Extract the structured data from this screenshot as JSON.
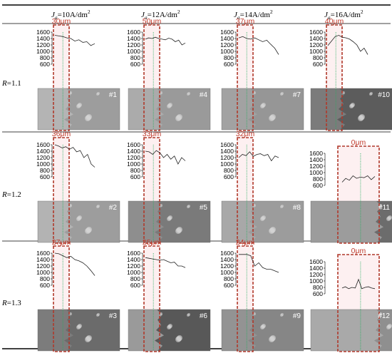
{
  "columns": [
    {
      "label_pre": "J",
      "label_sub": "a",
      "label_post": "=10A/dm",
      "label_sup": "2"
    },
    {
      "label_pre": "J",
      "label_sub": "a",
      "label_post": "=12A/dm",
      "label_sup": "2"
    },
    {
      "label_pre": "J",
      "label_sub": "a",
      "label_post": "=14A/dm",
      "label_sup": "2"
    },
    {
      "label_pre": "J",
      "label_sub": "a",
      "label_post": "=16A/dm",
      "label_sup": "2"
    }
  ],
  "rows": [
    {
      "label_var": "R",
      "label_val": "=1.1"
    },
    {
      "label_var": "R",
      "label_val": "=1.2"
    },
    {
      "label_var": "R",
      "label_val": "=1.3"
    }
  ],
  "y_ticks": [
    "1600",
    "1400",
    "1200",
    "1000",
    "800",
    "600"
  ],
  "colors": {
    "profile_line": "#222222",
    "dashed_box": "#b0392b",
    "box_fill": "#fbe3e6",
    "green_line": "#27ae60",
    "measurement_text": "#c0392b",
    "rule_line": "#000000"
  },
  "panels": [
    {
      "sample": "#1",
      "thickness": "30μm",
      "hardness": [
        1500,
        1480,
        1460,
        1420,
        1400,
        1320,
        1360,
        1280,
        1300,
        1180,
        1240
      ],
      "micro_bg": "#b4b4b4",
      "micro_dark": "#8a8a8a"
    },
    {
      "sample": "#4",
      "thickness": "50μm",
      "hardness": [
        1380,
        1420,
        1400,
        1440,
        1400,
        1380,
        1360,
        1410,
        1380,
        1300,
        1350,
        1200,
        1260
      ],
      "micro_bg": "#ababab",
      "micro_dark": "#8d8d8d"
    },
    {
      "sample": "#7",
      "thickness": "37μm",
      "hardness": [
        1420,
        1460,
        1400,
        1380,
        1420,
        1360,
        1300,
        1350,
        1220,
        1100,
        900
      ],
      "micro_bg": "#a2a2a2",
      "micro_dark": "#8c8c8c"
    },
    {
      "sample": "#10",
      "thickness": "40μm",
      "hardness": [
        1180,
        1320,
        1460,
        1500,
        1440,
        1420,
        1380,
        1300,
        1200,
        1000,
        1100,
        900
      ],
      "micro_bg": "#7b7b7b",
      "micro_dark": "#444444"
    },
    {
      "sample": "#2",
      "thickness": "36μm",
      "hardness": [
        1600,
        1560,
        1500,
        1540,
        1460,
        1520,
        1380,
        1420,
        1200,
        1300,
        1000,
        900
      ],
      "micro_bg": "#b3b3b3",
      "micro_dark": "#8a8a8a"
    },
    {
      "sample": "#5",
      "thickness": "33μm",
      "hardness": [
        1400,
        1380,
        1300,
        1420,
        1350,
        1200,
        1300,
        1150,
        1250,
        1000,
        1200,
        1100
      ],
      "micro_bg": "#8e8e8e",
      "micro_dark": "#6a6a6a"
    },
    {
      "sample": "#8",
      "thickness": "32μm",
      "hardness": [
        1200,
        1300,
        1260,
        1380,
        1240,
        1300,
        1320,
        1260,
        1300,
        1100,
        1250,
        1200
      ],
      "micro_bg": "#a8a8a8",
      "micro_dark": "#929292"
    },
    {
      "sample": "#11",
      "thickness": "0μm",
      "hardness": [
        700,
        820,
        760,
        900,
        820,
        860,
        840,
        900,
        780,
        880
      ],
      "micro_bg": "#9c9c9c",
      "micro_dark": "#454545"
    },
    {
      "sample": "#3",
      "thickness": "27μm",
      "hardness": [
        1600,
        1580,
        1520,
        1460,
        1500,
        1400,
        1360,
        1300,
        1200,
        1060,
        900
      ],
      "micro_bg": "#7c7c7c",
      "micro_dark": "#5c5c5c"
    },
    {
      "sample": "#6",
      "thickness": "25μm",
      "hardness": [
        1460,
        1440,
        1420,
        1400,
        1380,
        1400,
        1350,
        1300,
        1320,
        1200,
        1200,
        1150
      ],
      "micro_bg": "#9a9a9a",
      "micro_dark": "#222222"
    },
    {
      "sample": "#9",
      "thickness": "24μm",
      "hardness": [
        1560,
        1560,
        1560,
        1520,
        1200,
        1300,
        1150,
        1100,
        1100,
        1050,
        1000
      ],
      "micro_bg": "#939393",
      "micro_dark": "#7c7c7c"
    },
    {
      "sample": "#12",
      "thickness": "0μm",
      "hardness": [
        780,
        820,
        760,
        800,
        780,
        1050,
        760,
        800,
        820,
        780,
        760
      ],
      "micro_bg": "#a9a9a9",
      "micro_dark": "#7a7a7a"
    }
  ]
}
